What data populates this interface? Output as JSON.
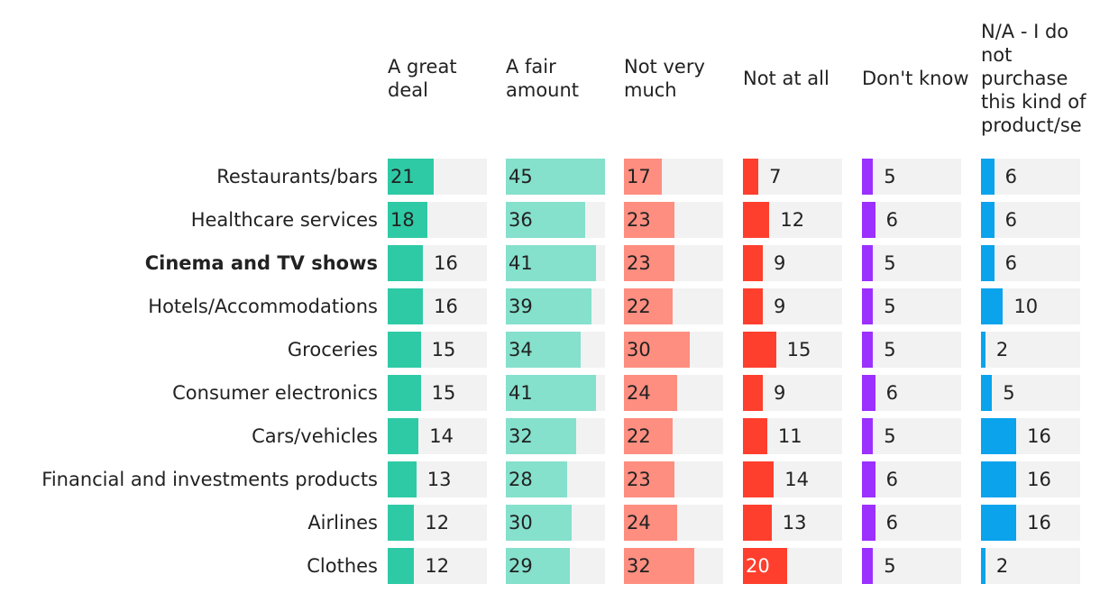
{
  "chart_data": {
    "type": "bar",
    "categories": [
      "Restaurants/bars",
      "Healthcare services",
      "Cinema and TV shows",
      "Hotels/Accommodations",
      "Groceries",
      "Consumer electronics",
      "Cars/vehicles",
      "Financial and investments products",
      "Airlines",
      "Clothes"
    ],
    "highlight_index": 2,
    "background_color": "#f2f2f2",
    "series": [
      {
        "name": "A great deal",
        "color": "#2ecaa5",
        "values": [
          21,
          18,
          16,
          16,
          15,
          15,
          14,
          13,
          12,
          12
        ]
      },
      {
        "name": "A fair amount",
        "color": "#85e0cc",
        "values": [
          45,
          36,
          41,
          39,
          34,
          41,
          32,
          28,
          30,
          29
        ]
      },
      {
        "name": "Not very much",
        "color": "#fd8e80",
        "values": [
          17,
          23,
          23,
          22,
          30,
          24,
          22,
          23,
          24,
          32
        ]
      },
      {
        "name": "Not at all",
        "color": "#ff3f2e",
        "values": [
          7,
          12,
          9,
          9,
          15,
          9,
          11,
          14,
          13,
          20
        ]
      },
      {
        "name": "Don't know",
        "color": "#9b30ff",
        "values": [
          5,
          6,
          5,
          5,
          5,
          6,
          5,
          6,
          6,
          5
        ]
      },
      {
        "name": "N/A - I do not purchase this kind of product/se",
        "color": "#0aa3ec",
        "values": [
          6,
          6,
          6,
          10,
          2,
          5,
          16,
          16,
          16,
          2
        ]
      }
    ]
  }
}
